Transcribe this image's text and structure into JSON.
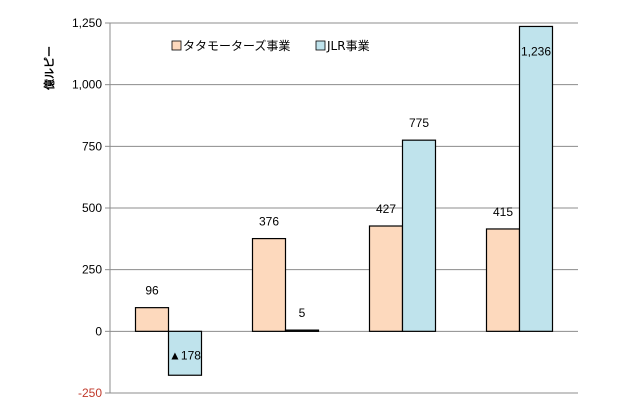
{
  "chart_data": {
    "type": "bar",
    "ylabel": "億ルピー",
    "ylim": [
      -250,
      1250
    ],
    "yticks": [
      -250,
      0,
      250,
      500,
      750,
      1000,
      1250
    ],
    "ytick_labels": [
      "-250",
      "0",
      "250",
      "500",
      "750",
      "1,000",
      "1,250"
    ],
    "grid": true,
    "legend_position": "top",
    "categories": [
      "",
      "",
      "",
      ""
    ],
    "series": [
      {
        "name": "タタモーターズ事業",
        "color": "#fdd9bd",
        "values": [
          96,
          376,
          427,
          415
        ],
        "labels": [
          "96",
          "376",
          "427",
          "415"
        ]
      },
      {
        "name": "JLR事業",
        "color": "#bfe3ec",
        "values": [
          -178,
          5,
          775,
          1236
        ],
        "labels": [
          "▲178",
          "5",
          "775",
          "1,236"
        ]
      }
    ],
    "negative_tick_color": "#c0392b"
  }
}
